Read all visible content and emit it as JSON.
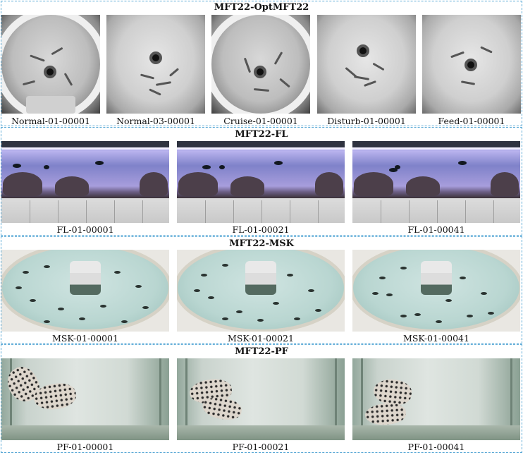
{
  "sections": [
    {
      "title": "MFT22-OptMFT22",
      "captions": [
        "Normal-01-00001",
        "Normal-03-00001",
        "Cruise-01-00001",
        "Disturb-01-00001",
        "Feed-01-00001"
      ]
    },
    {
      "title": "MFT22-FL",
      "captions": [
        "FL-01-00001",
        "FL-01-00021",
        "FL-01-00041"
      ]
    },
    {
      "title": "MFT22-MSK",
      "captions": [
        "MSK-01-00001",
        "MSK-01-00021",
        "MSK-01-00041"
      ]
    },
    {
      "title": "MFT22-PF",
      "captions": [
        "PF-01-00001",
        "PF-01-00021",
        "PF-01-00041"
      ]
    }
  ]
}
